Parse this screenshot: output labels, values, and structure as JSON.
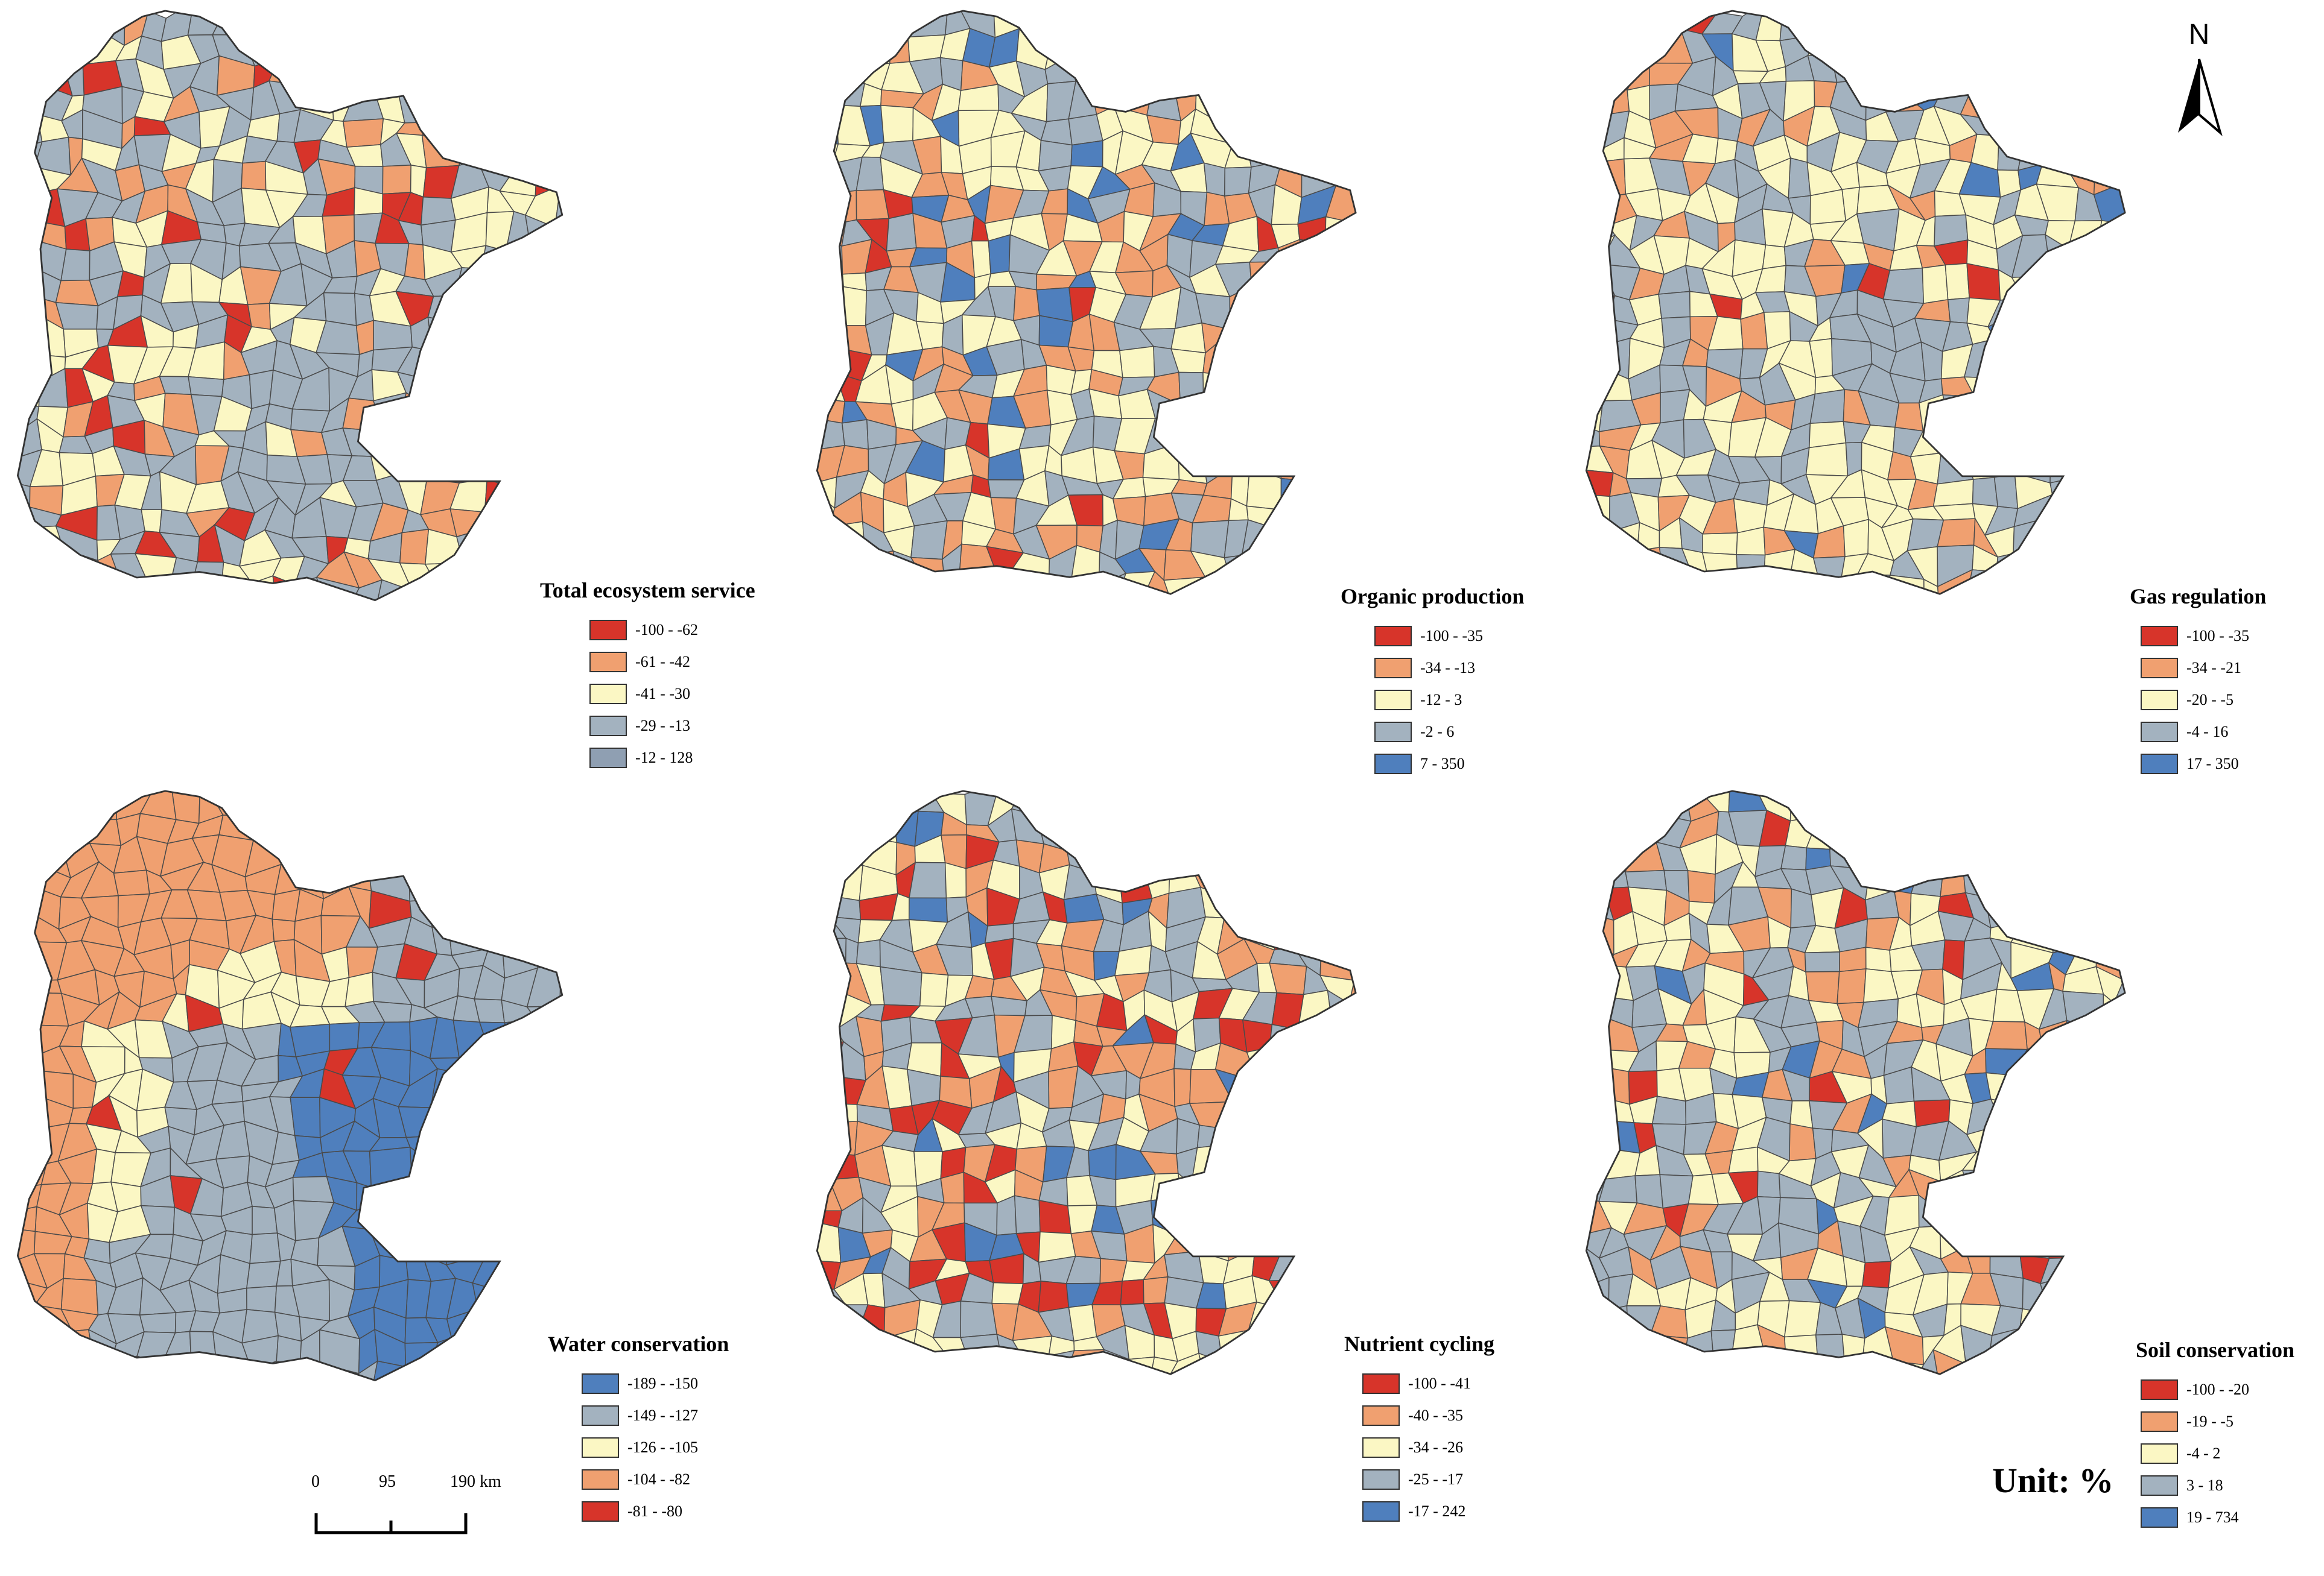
{
  "colors": {
    "red": "#d7342a",
    "orange": "#f0a070",
    "yellow": "#fbf7c4",
    "gray": "#a3b2bf",
    "blue": "#4f7fbd",
    "boundary": "#4a4a4a"
  },
  "panels": [
    {
      "id": "total",
      "title": "Total ecosystem service",
      "classes": [
        {
          "label": "-100 - -62",
          "color": "#d7342a"
        },
        {
          "label": "-61 - -42",
          "color": "#f0a070"
        },
        {
          "label": "-41 - -30",
          "color": "#fbf7c4"
        },
        {
          "label": "-29 - -13",
          "color": "#a3b2bf"
        },
        {
          "label": "-12 - 128",
          "color": "#8f9fb2"
        }
      ],
      "weights": [
        0.08,
        0.15,
        0.27,
        0.5,
        0.0
      ]
    },
    {
      "id": "organic",
      "title": "Organic production",
      "classes": [
        {
          "label": "-100 - -35",
          "color": "#d7342a"
        },
        {
          "label": "-34 - -13",
          "color": "#f0a070"
        },
        {
          "label": "-12 - 3",
          "color": "#fbf7c4"
        },
        {
          "label": "-2 - 6",
          "color": "#a3b2bf"
        },
        {
          "label": "7 - 350",
          "color": "#4f7fbd"
        }
      ],
      "weights": [
        0.05,
        0.22,
        0.33,
        0.3,
        0.1
      ]
    },
    {
      "id": "gas",
      "title": "Gas regulation",
      "classes": [
        {
          "label": "-100 - -35",
          "color": "#d7342a"
        },
        {
          "label": "-34 - -21",
          "color": "#f0a070"
        },
        {
          "label": "-20 - -5",
          "color": "#fbf7c4"
        },
        {
          "label": "-4 - 16",
          "color": "#a3b2bf"
        },
        {
          "label": "17 - 350",
          "color": "#4f7fbd"
        }
      ],
      "weights": [
        0.04,
        0.14,
        0.4,
        0.38,
        0.04
      ]
    },
    {
      "id": "water",
      "title": "Water conservation",
      "classes": [
        {
          "label": "-189 - -150",
          "color": "#4f7fbd"
        },
        {
          "label": "-149 - -127",
          "color": "#a3b2bf"
        },
        {
          "label": "-126 - -105",
          "color": "#fbf7c4"
        },
        {
          "label": "-104 - -82",
          "color": "#f0a070"
        },
        {
          "label": "-81 - -80",
          "color": "#d7342a"
        }
      ],
      "weights": [
        0.25,
        0.35,
        0.18,
        0.2,
        0.02
      ]
    },
    {
      "id": "nutrient",
      "title": "Nutrient cycling",
      "classes": [
        {
          "label": "-100 - -41",
          "color": "#d7342a"
        },
        {
          "label": "-40 - -35",
          "color": "#f0a070"
        },
        {
          "label": "-34 - -26",
          "color": "#fbf7c4"
        },
        {
          "label": "-25 - -17",
          "color": "#a3b2bf"
        },
        {
          "label": "-17 - 242",
          "color": "#4f7fbd"
        }
      ],
      "weights": [
        0.1,
        0.2,
        0.33,
        0.3,
        0.07
      ]
    },
    {
      "id": "soil",
      "title": "Soil conservation",
      "classes": [
        {
          "label": "-100 - -20",
          "color": "#d7342a"
        },
        {
          "label": "-19 - -5",
          "color": "#f0a070"
        },
        {
          "label": "-4 - 2",
          "color": "#fbf7c4"
        },
        {
          "label": "3 - 18",
          "color": "#a3b2bf"
        },
        {
          "label": "19 - 734",
          "color": "#4f7fbd"
        }
      ],
      "weights": [
        0.05,
        0.18,
        0.35,
        0.35,
        0.07
      ]
    }
  ],
  "north_arrow": {
    "letter": "N"
  },
  "scale_bar": {
    "labels": [
      "0",
      "95",
      "190 km"
    ]
  },
  "unit_label": "Unit: %"
}
